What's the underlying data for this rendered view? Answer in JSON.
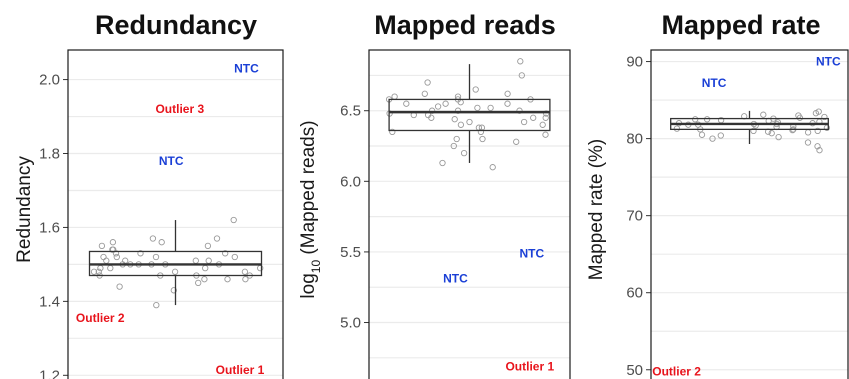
{
  "colors": {
    "ntc": "#1a3fd6",
    "outlier": "#e8141c",
    "grid": "#ebebeb",
    "box": "#333333",
    "point": "#9a9a9a"
  },
  "chart_data": [
    {
      "type": "box",
      "title": "Redundancy",
      "ylabel": "Redundancy",
      "ylabel_sub": "",
      "ylabel_tail": "",
      "ylim": [
        1.19,
        2.08
      ],
      "yticks": [
        1.2,
        1.4,
        1.6,
        1.8,
        2.0
      ],
      "ytick_labels": [
        "1.2",
        "1.4",
        "1.6",
        "1.8",
        "2.0"
      ],
      "grid": true,
      "box": {
        "whisker_low": 1.39,
        "q1": 1.47,
        "median": 1.5,
        "q3": 1.535,
        "whisker_high": 1.62
      },
      "points": [
        1.56,
        1.53,
        1.48,
        1.51,
        1.46,
        1.55,
        1.49,
        1.52,
        1.47,
        1.5,
        1.57,
        1.45,
        1.54,
        1.49,
        1.51,
        1.43,
        1.5,
        1.52,
        1.48,
        1.56,
        1.47,
        1.53,
        1.5,
        1.44,
        1.51,
        1.49,
        1.55,
        1.46,
        1.52,
        1.5,
        1.62,
        1.48,
        1.53,
        1.39,
        1.51,
        1.47,
        1.54,
        1.49,
        1.5,
        1.57,
        1.46,
        1.52,
        1.48,
        1.5,
        1.47
      ],
      "annotations": [
        {
          "text": "NTC",
          "kind": "ntc",
          "x": 0.83,
          "y": 2.03
        },
        {
          "text": "Outlier 3",
          "kind": "outlier",
          "x": 0.52,
          "y": 1.92
        },
        {
          "text": "NTC",
          "kind": "ntc",
          "x": 0.48,
          "y": 1.78
        },
        {
          "text": "Outlier 2",
          "kind": "outlier",
          "x": 0.15,
          "y": 1.355
        },
        {
          "text": "Outlier 1",
          "kind": "outlier",
          "x": 0.8,
          "y": 1.215
        }
      ]
    },
    {
      "type": "box",
      "title": "Mapped reads",
      "ylabel": "log",
      "ylabel_sub": "10",
      "ylabel_tail": " (Mapped reads)",
      "ylim": [
        4.6,
        6.93
      ],
      "yticks": [
        5.0,
        5.5,
        6.0,
        6.5
      ],
      "ytick_labels": [
        "5.0",
        "5.5",
        "6.0",
        "6.5"
      ],
      "grid": true,
      "box": {
        "whisker_low": 6.13,
        "q1": 6.36,
        "median": 6.49,
        "q3": 6.58,
        "whisker_high": 6.83
      },
      "points": [
        6.75,
        6.65,
        6.6,
        6.55,
        6.5,
        6.45,
        6.58,
        6.48,
        6.42,
        6.38,
        6.62,
        6.52,
        6.35,
        6.3,
        6.55,
        6.47,
        6.2,
        6.13,
        6.45,
        6.85,
        6.6,
        6.4,
        6.5,
        6.28,
        6.56,
        6.33,
        6.44,
        6.52,
        6.38,
        6.7,
        6.25,
        6.48,
        6.58,
        6.42,
        6.1,
        6.55,
        6.45,
        6.35,
        6.62,
        6.5,
        6.4,
        6.3,
        6.53,
        6.47,
        6.58
      ],
      "annotations": [
        {
          "text": "NTC",
          "kind": "ntc",
          "x": 0.81,
          "y": 5.49
        },
        {
          "text": "NTC",
          "kind": "ntc",
          "x": 0.43,
          "y": 5.31
        },
        {
          "text": "Outlier 1",
          "kind": "outlier",
          "x": 0.8,
          "y": 4.69
        }
      ]
    },
    {
      "type": "box",
      "title": "Mapped rate",
      "ylabel": "Mapped rate (%)",
      "ylabel_sub": "",
      "ylabel_tail": "",
      "ylim": [
        48.8,
        91.5
      ],
      "yticks": [
        50,
        60,
        70,
        80,
        90
      ],
      "ytick_labels": [
        "50",
        "60",
        "70",
        "80",
        "90"
      ],
      "grid": true,
      "box": {
        "whisker_low": 79.3,
        "q1": 81.2,
        "median": 81.9,
        "q3": 82.6,
        "whisker_high": 83.6
      },
      "points": [
        82.5,
        81.8,
        83.0,
        80.5,
        81.2,
        82.1,
        79.0,
        81.5,
        82.8,
        80.8,
        81.9,
        83.3,
        81.0,
        82.4,
        80.2,
        81.7,
        82.9,
        81.3,
        82.0,
        83.5,
        80.9,
        81.6,
        82.3,
        81.1,
        82.7,
        80.4,
        81.8,
        82.2,
        81.4,
        82.6,
        81.0,
        83.1,
        81.9,
        80.7,
        82.5,
        81.2,
        79.5,
        78.5,
        80.0,
        82.0
      ],
      "annotations": [
        {
          "text": "NTC",
          "kind": "ntc",
          "x": 0.9,
          "y": 90.0
        },
        {
          "text": "NTC",
          "kind": "ntc",
          "x": 0.32,
          "y": 87.2
        },
        {
          "text": "Outlier 2",
          "kind": "outlier",
          "x": 0.13,
          "y": 49.8
        }
      ]
    }
  ]
}
